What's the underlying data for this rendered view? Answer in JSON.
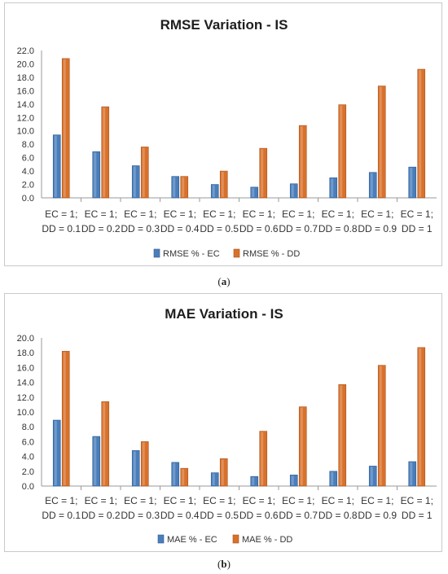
{
  "chart_data": [
    {
      "type": "bar",
      "title": "RMSE Variation - IS",
      "categories": [
        [
          "EC = 1;",
          "DD = 0.1"
        ],
        [
          "EC = 1;",
          "DD = 0.2"
        ],
        [
          "EC = 1;",
          "DD = 0.3"
        ],
        [
          "EC = 1;",
          "DD = 0.4"
        ],
        [
          "EC = 1;",
          "DD = 0.5"
        ],
        [
          "EC = 1;",
          "DD = 0.6"
        ],
        [
          "EC = 1;",
          "DD = 0.7"
        ],
        [
          "EC = 1;",
          "DD = 0.8"
        ],
        [
          "EC = 1;",
          "DD = 0.9"
        ],
        [
          "EC = 1;",
          "DD = 1"
        ]
      ],
      "series": [
        {
          "name": "RMSE % - EC",
          "color": "#4a7ebb",
          "values": [
            9.4,
            6.9,
            4.8,
            3.2,
            2.0,
            1.6,
            2.1,
            3.0,
            3.8,
            4.6
          ]
        },
        {
          "name": "RMSE % - DD",
          "color": "#d9712b",
          "values": [
            20.8,
            13.6,
            7.6,
            3.2,
            4.0,
            7.4,
            10.8,
            13.9,
            16.7,
            19.2
          ]
        }
      ],
      "ylim": [
        0,
        22
      ],
      "yticks": [
        "0.0",
        "2.0",
        "4.0",
        "6.0",
        "8.0",
        "10.0",
        "12.0",
        "14.0",
        "16.0",
        "18.0",
        "20.0",
        "22.0"
      ],
      "ystep": 2,
      "legend": "bottom",
      "grid": false
    },
    {
      "type": "bar",
      "title": "MAE Variation - IS",
      "categories": [
        [
          "EC = 1;",
          "DD = 0.1"
        ],
        [
          "EC = 1;",
          "DD = 0.2"
        ],
        [
          "EC = 1;",
          "DD = 0.3"
        ],
        [
          "EC = 1;",
          "DD = 0.4"
        ],
        [
          "EC = 1;",
          "DD = 0.5"
        ],
        [
          "EC = 1;",
          "DD = 0.6"
        ],
        [
          "EC = 1;",
          "DD = 0.7"
        ],
        [
          "EC = 1;",
          "DD = 0.8"
        ],
        [
          "EC = 1;",
          "DD = 0.9"
        ],
        [
          "EC = 1;",
          "DD = 1"
        ]
      ],
      "series": [
        {
          "name": "MAE % - EC",
          "color": "#4a7ebb",
          "values": [
            8.9,
            6.7,
            4.8,
            3.2,
            1.8,
            1.3,
            1.5,
            2.0,
            2.7,
            3.3
          ]
        },
        {
          "name": "MAE % - DD",
          "color": "#d9712b",
          "values": [
            18.2,
            11.4,
            6.0,
            2.4,
            3.7,
            7.4,
            10.7,
            13.7,
            16.3,
            18.7
          ]
        }
      ],
      "ylim": [
        0,
        20
      ],
      "yticks": [
        "0.0",
        "2.0",
        "4.0",
        "6.0",
        "8.0",
        "10.0",
        "12.0",
        "14.0",
        "16.0",
        "18.0",
        "20.0"
      ],
      "ystep": 2,
      "legend": "bottom",
      "grid": false
    }
  ],
  "captions": {
    "a": "a",
    "b": "b"
  }
}
